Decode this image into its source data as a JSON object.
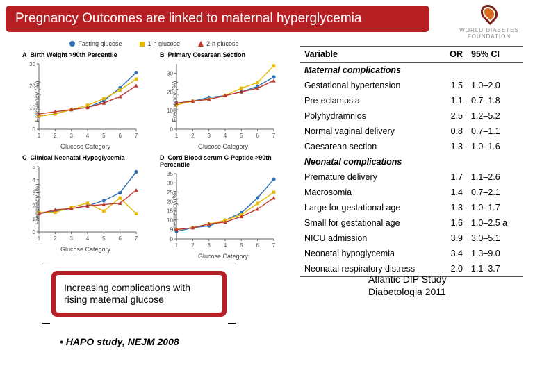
{
  "colors": {
    "red": "#b61f24",
    "white": "#ffffff",
    "black": "#000000",
    "series_blue": "#2e6fb5",
    "series_yellow": "#e6b800",
    "series_red": "#c0392b",
    "axis": "#666666"
  },
  "header": {
    "title": "Pregnancy Outcomes are linked to maternal hyperglycemia"
  },
  "wdf": {
    "line": "WORLD DIABETES FOUNDATION"
  },
  "legend": {
    "items": [
      {
        "label": "Fasting glucose",
        "color": "#2e6fb5",
        "marker": "circle"
      },
      {
        "label": "1-h glucose",
        "color": "#e6b800",
        "marker": "square"
      },
      {
        "label": "2-h glucose",
        "color": "#c0392b",
        "marker": "triangle"
      }
    ]
  },
  "panels": {
    "common": {
      "xlabel": "Glucose Category",
      "ylabel": "Frequency (%)",
      "x_categories": [
        1,
        2,
        3,
        4,
        5,
        6,
        7
      ]
    },
    "A": {
      "letter": "A",
      "title": "Birth Weight >90th Percentile",
      "ylim": [
        0,
        30
      ],
      "ytick_step": 10,
      "series": {
        "blue": [
          6,
          7,
          9,
          10,
          13,
          19,
          26
        ],
        "yellow": [
          6,
          7,
          9,
          11,
          14,
          18,
          23
        ],
        "red": [
          7,
          8,
          9,
          10,
          12,
          15,
          20
        ]
      }
    },
    "B": {
      "letter": "B",
      "title": "Primary Cesarean Section",
      "ylim": [
        0,
        35
      ],
      "ytick_step": 10,
      "series": {
        "blue": [
          14,
          15,
          17,
          18,
          20,
          23,
          28
        ],
        "yellow": [
          13,
          15,
          16,
          18,
          22,
          25,
          34
        ],
        "red": [
          14,
          15,
          16,
          18,
          20,
          22,
          26
        ]
      }
    },
    "C": {
      "letter": "C",
      "title": "Clinical Neonatal Hypoglycemia",
      "ylim": [
        0,
        5
      ],
      "ytick_step": 1,
      "series": {
        "blue": [
          1.4,
          1.6,
          1.8,
          2.0,
          2.4,
          3.0,
          4.6
        ],
        "yellow": [
          1.5,
          1.5,
          1.9,
          2.2,
          1.6,
          2.6,
          1.4
        ],
        "red": [
          1.4,
          1.7,
          1.8,
          2.0,
          2.1,
          2.2,
          3.2
        ]
      }
    },
    "D": {
      "letter": "D",
      "title": "Cord Blood serum C-Peptide >90th Percentile",
      "ylim": [
        0,
        35
      ],
      "ytick_step": 5,
      "series": {
        "blue": [
          4,
          6,
          7,
          10,
          14,
          22,
          32
        ],
        "yellow": [
          5,
          6,
          8,
          10,
          13,
          19,
          25
        ],
        "red": [
          5,
          6,
          8,
          9,
          12,
          16,
          22
        ]
      }
    }
  },
  "table": {
    "headers": {
      "variable": "Variable",
      "or": "OR",
      "ci": "95% CI"
    },
    "sections": [
      {
        "title": "Maternal complications",
        "rows": [
          {
            "variable": "Gestational hypertension",
            "or": "1.5",
            "ci": "1.0–2.0"
          },
          {
            "variable": "Pre-eclampsia",
            "or": "1.1",
            "ci": "0.7–1.8"
          },
          {
            "variable": "Polyhydramnios",
            "or": "2.5",
            "ci": "1.2–5.2"
          },
          {
            "variable": "Normal vaginal delivery",
            "or": "0.8",
            "ci": "0.7–1.1"
          },
          {
            "variable": "Caesarean section",
            "or": "1.3",
            "ci": "1.0–1.6"
          }
        ]
      },
      {
        "title": "Neonatal complications",
        "rows": [
          {
            "variable": "Premature delivery",
            "or": "1.7",
            "ci": "1.1–2.6"
          },
          {
            "variable": "Macrosomia",
            "or": "1.4",
            "ci": "0.7–2.1"
          },
          {
            "variable": "Large for gestational age",
            "or": "1.3",
            "ci": "1.0–1.7"
          },
          {
            "variable": "Small for gestational age",
            "or": "1.6",
            "ci": "1.0–2.5 a"
          },
          {
            "variable": "NICU admission",
            "or": "3.9",
            "ci": "3.0–5.1"
          },
          {
            "variable": "Neonatal hypoglycemia",
            "or": "3.4",
            "ci": "1.3–9.0"
          },
          {
            "variable": "Neonatal respiratory distress",
            "or": "2.0",
            "ci": "1.1–3.7"
          }
        ]
      }
    ]
  },
  "callout": {
    "line1": "Increasing complications with",
    "line2": "rising maternal glucose"
  },
  "citations": {
    "atlantic_l1": "Atlantic DIP Study",
    "atlantic_l2": "Diabetologia 2011",
    "hapo": "•  HAPO study, NEJM 2008"
  }
}
